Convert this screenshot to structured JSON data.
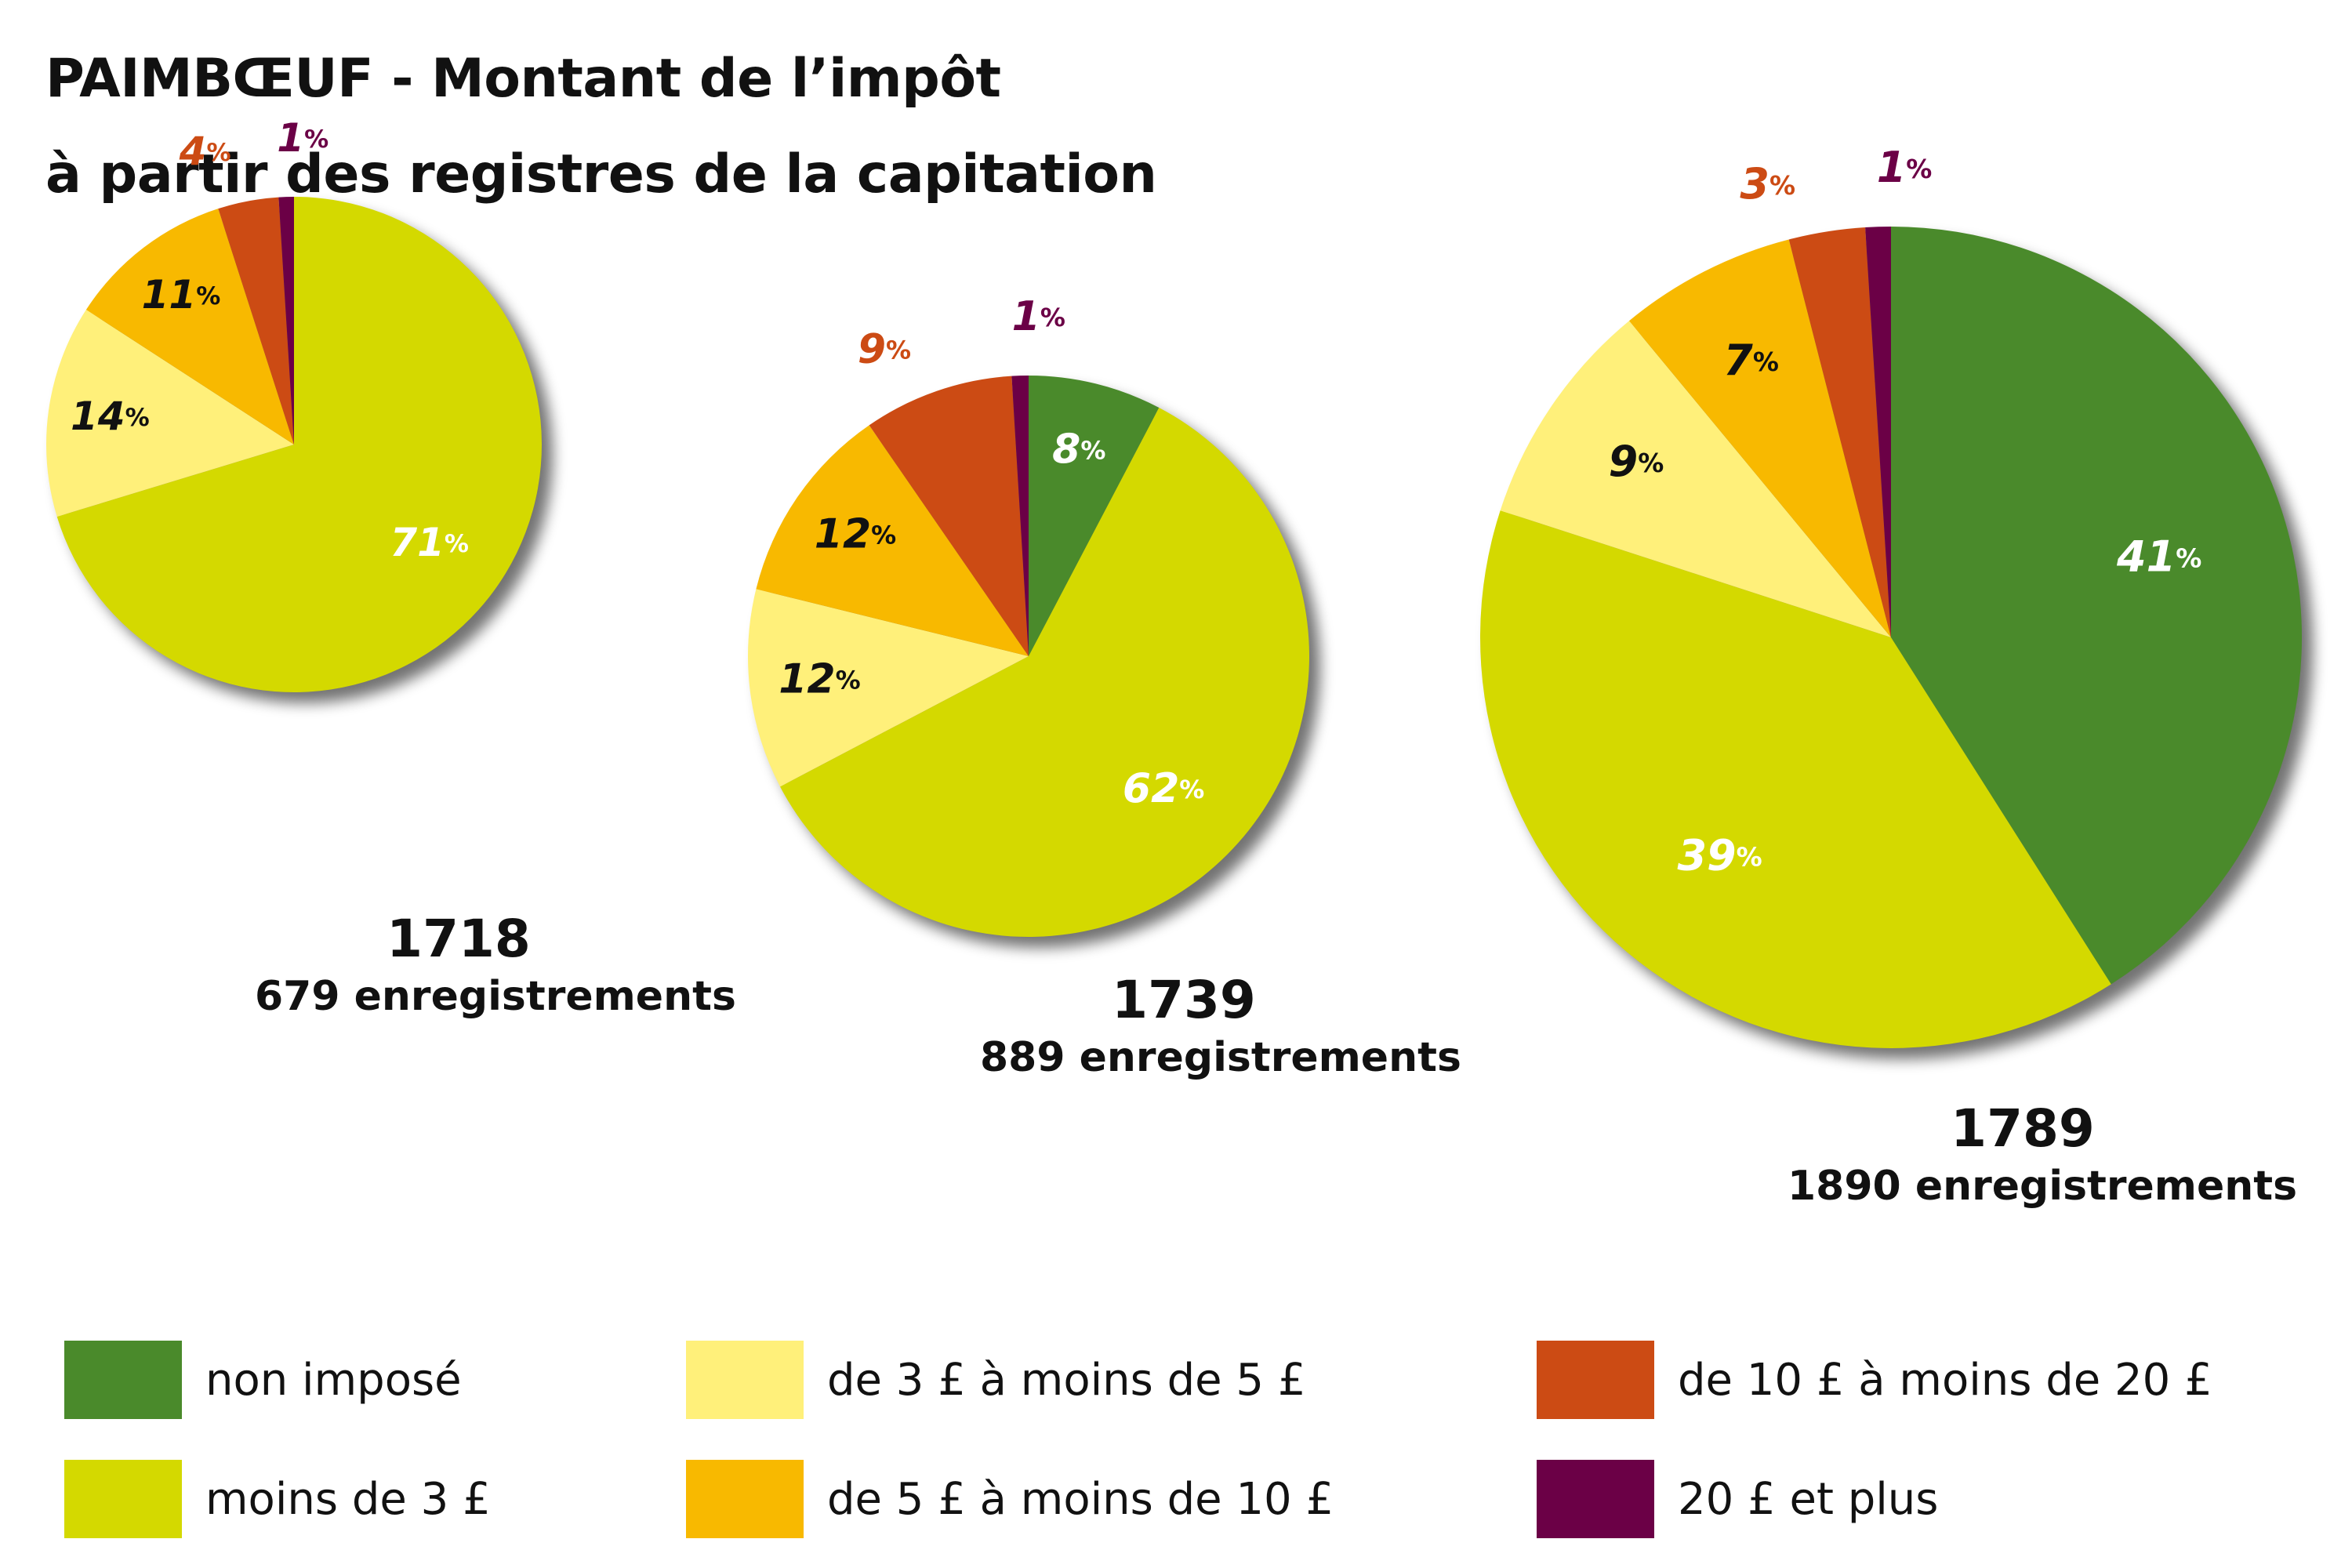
{
  "title": {
    "line1": "PAIMBŒUF - Montant de l’impôt",
    "line2": "à partir des registres de la capitation"
  },
  "categories": [
    {
      "key": "non_impose",
      "label": "non imposé",
      "color": "#4a8a2b"
    },
    {
      "key": "moins_3",
      "label": "moins de 3 £",
      "color": "#d4d900"
    },
    {
      "key": "3_5",
      "label": "de 3 £ à moins de 5 £",
      "color": "#fff07a"
    },
    {
      "key": "5_10",
      "label": "de 5 £ à moins de 10 £",
      "color": "#f8b900"
    },
    {
      "key": "10_20",
      "label": "de 10 £ à moins de 20 £",
      "color": "#cc4b14"
    },
    {
      "key": "20_plus",
      "label": "20 £ et plus",
      "color": "#6b0046"
    }
  ],
  "chart_data": [
    {
      "type": "pie",
      "year": "1718",
      "records": "679 enregistrements",
      "labels": [
        "non imposé",
        "moins de 3 £",
        "de 3 £ à moins de 5 £",
        "de 5 £ à moins de 10 £",
        "de 10 £ à moins de 20 £",
        "20 £ et plus"
      ],
      "values": [
        0,
        71,
        14,
        11,
        4,
        1
      ]
    },
    {
      "type": "pie",
      "year": "1739",
      "records": "889 enregistrements",
      "labels": [
        "non imposé",
        "moins de 3 £",
        "de 3 £ à moins de 5 £",
        "de 5 £ à moins de 10 £",
        "de 10 £ à moins de 20 £",
        "20 £ et plus"
      ],
      "values": [
        8,
        62,
        12,
        12,
        9,
        1
      ]
    },
    {
      "type": "pie",
      "year": "1789",
      "records": "1890 enregistrements",
      "labels": [
        "non imposé",
        "moins de 3 £",
        "de 3 £ à moins de 5 £",
        "de 5 £ à moins de 10 £",
        "de 10 £ à moins de 20 £",
        "20 £ et plus"
      ],
      "values": [
        41,
        39,
        9,
        7,
        3,
        1
      ]
    }
  ]
}
